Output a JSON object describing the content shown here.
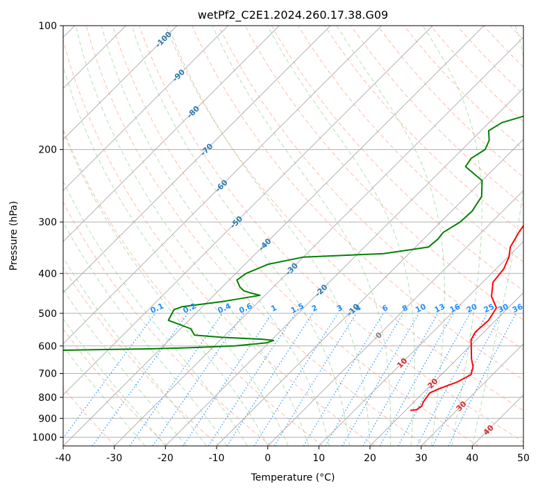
{
  "chart_data": {
    "type": "line",
    "title": "wetPf2_C2E1.2024.260.17.38.G09",
    "xlabel": "Temperature (°C)",
    "ylabel": "Pressure (hPa)",
    "x_ticks": [
      -40,
      -30,
      -20,
      -10,
      0,
      10,
      20,
      30,
      40,
      50
    ],
    "y_ticks": [
      100,
      200,
      300,
      400,
      500,
      600,
      700,
      800,
      900,
      1000
    ],
    "xlim": [
      -40,
      50
    ],
    "ylim": [
      1050,
      100
    ],
    "y_scale": "log",
    "grid": true,
    "series": [
      {
        "key": "temperature",
        "color": "#ff0000",
        "points": [
          [
            20.9,
            860
          ],
          [
            22.0,
            858
          ],
          [
            22.3,
            840
          ],
          [
            21.8,
            820
          ],
          [
            21.3,
            780
          ],
          [
            22.5,
            760
          ],
          [
            24.5,
            735
          ],
          [
            25.8,
            705
          ],
          [
            24.7,
            675
          ],
          [
            22.8,
            645
          ],
          [
            20.8,
            610
          ],
          [
            19.0,
            580
          ],
          [
            18.3,
            555
          ],
          [
            18.6,
            520
          ],
          [
            17.7,
            485
          ],
          [
            14.5,
            455
          ],
          [
            12.0,
            420
          ],
          [
            11.5,
            390
          ],
          [
            10.2,
            365
          ],
          [
            8.5,
            345
          ],
          [
            7.3,
            318
          ],
          [
            6.3,
            290
          ],
          [
            5.1,
            265
          ],
          [
            4.1,
            240
          ],
          [
            3.7,
            220
          ],
          [
            3.4,
            203
          ],
          [
            3.5,
            190
          ],
          [
            4.4,
            175
          ],
          [
            5.6,
            160
          ],
          [
            6.3,
            145
          ],
          [
            6.7,
            132
          ],
          [
            6.6,
            122
          ],
          [
            7.4,
            116
          ],
          [
            9.4,
            110
          ],
          [
            11.3,
            105
          ],
          [
            12.5,
            100
          ]
        ]
      },
      {
        "key": "dewpoint",
        "color": "#008000",
        "points": [
          [
            -60,
            615
          ],
          [
            -42,
            610
          ],
          [
            -34,
            606
          ],
          [
            -26,
            600
          ],
          [
            -20.5,
            590
          ],
          [
            -19.5,
            582
          ],
          [
            -22,
            578
          ],
          [
            -30,
            572
          ],
          [
            -36,
            565
          ],
          [
            -38,
            545
          ],
          [
            -44,
            520
          ],
          [
            -45,
            490
          ],
          [
            -44,
            482
          ],
          [
            -37,
            468
          ],
          [
            -31,
            452
          ],
          [
            -33,
            447
          ],
          [
            -35,
            441
          ],
          [
            -36.5,
            432
          ],
          [
            -38.5,
            415
          ],
          [
            -38,
            400
          ],
          [
            -35.5,
            380
          ],
          [
            -30,
            365
          ],
          [
            -15,
            358
          ],
          [
            -7.5,
            345
          ],
          [
            -7.2,
            330
          ],
          [
            -7.5,
            318
          ],
          [
            -6.2,
            300
          ],
          [
            -6.0,
            282
          ],
          [
            -7.0,
            260
          ],
          [
            -10.0,
            238
          ],
          [
            -16,
            220
          ],
          [
            -16.5,
            210
          ],
          [
            -15.5,
            200
          ],
          [
            -16.5,
            190
          ],
          [
            -18.5,
            180
          ],
          [
            -17.5,
            172
          ],
          [
            -13,
            163
          ],
          [
            -9.5,
            152
          ],
          [
            -8.8,
            140
          ],
          [
            -7.0,
            128
          ],
          [
            -5.2,
            118
          ],
          [
            -4.5,
            112
          ],
          [
            -3.0,
            107
          ],
          [
            0.2,
            100
          ]
        ]
      }
    ],
    "isotherm_labels": [
      "-100",
      "-90",
      "-80",
      "-70",
      "-60",
      "-50",
      "-40",
      "-30",
      "-20",
      "-10",
      "0",
      "10",
      "20",
      "30",
      "40"
    ],
    "mixing_ratio_labels": [
      "0.1",
      "0.2",
      "0.4",
      "0.6",
      "1",
      "1.5",
      "2",
      "3",
      "4",
      "6",
      "8",
      "10",
      "13",
      "16",
      "20",
      "25",
      "30",
      "36"
    ]
  },
  "colors": {
    "isotherm_label_cold": "#2a7ab0",
    "isotherm_label_zero": "#808080",
    "isotherm_label_warm": "#d62728",
    "mixing_ratio": "#1e90ff",
    "dry_adiabat": "#ff6a3d",
    "moist_adiabat": "#2ca02c",
    "grid": "#b0b0b0"
  }
}
